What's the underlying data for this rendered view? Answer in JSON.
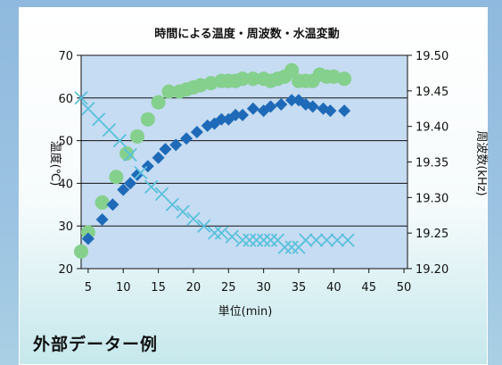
{
  "caption": "外部データー例",
  "chart_data": {
    "type": "line",
    "title": "時間による温度・周波数・水温変動",
    "xlabel": "単位(min)",
    "ylabel_left": "温度(℃)",
    "ylabel_right": "周波数(kHz)",
    "x_ticks": [
      5,
      10,
      15,
      20,
      25,
      30,
      35,
      40,
      45,
      50
    ],
    "xlim": [
      4,
      50.5
    ],
    "y_left_ticks": [
      20,
      30,
      40,
      50,
      60,
      70
    ],
    "y_left_lim": [
      20,
      70
    ],
    "y_right_ticks": [
      "19.20",
      "19.25",
      "19.30",
      "19.35",
      "19.40",
      "19.45",
      "19.50"
    ],
    "y_right_lim": [
      19.2,
      19.5
    ],
    "grid": "horizontal",
    "plot_bg": "#c5dcf2",
    "series": [
      {
        "axis": "left",
        "marker": "circle",
        "color": "#85d08d",
        "x": [
          4,
          5,
          7,
          9,
          10.5,
          12,
          13.5,
          15,
          16.5,
          18,
          19,
          20,
          21,
          22.5,
          24,
          25,
          26,
          27,
          28.5,
          30,
          31,
          32,
          33,
          34,
          35,
          36,
          37,
          38,
          39,
          40,
          41.5
        ],
        "y": [
          24,
          28.5,
          35.5,
          41.5,
          47,
          51,
          55,
          59,
          61.5,
          61.5,
          62,
          62.5,
          63,
          63.5,
          64,
          64,
          64,
          64.5,
          64.5,
          64.5,
          64,
          64.5,
          65,
          66.5,
          64,
          64,
          64,
          65.5,
          65,
          65,
          64.5
        ]
      },
      {
        "axis": "left",
        "marker": "diamond",
        "color": "#1f6ab8",
        "x": [
          5,
          7,
          8.5,
          10,
          11,
          12,
          13.5,
          15,
          16,
          17.5,
          19,
          20.5,
          22,
          23,
          24,
          25,
          26,
          27,
          28.5,
          30,
          31,
          32.5,
          34,
          35,
          36,
          37,
          38.5,
          39.5,
          41.5
        ],
        "y": [
          27,
          31.5,
          35,
          38.5,
          40,
          42,
          44,
          46,
          48,
          49,
          50.5,
          52,
          53.5,
          54,
          55,
          55,
          56,
          56,
          57.5,
          57,
          58,
          58.5,
          59.5,
          59.5,
          58.5,
          58,
          57.5,
          57,
          57
        ]
      },
      {
        "axis": "right",
        "marker": "x",
        "color": "#5bc0dc",
        "x": [
          4,
          5,
          6.5,
          8,
          9.5,
          11,
          12.5,
          14,
          15.5,
          17,
          18.5,
          20,
          21.5,
          23,
          24,
          25.5,
          27,
          28,
          29,
          30,
          31,
          32,
          33,
          34,
          35,
          36,
          37.5,
          39,
          40.5,
          42
        ],
        "y": [
          19.44,
          19.425,
          19.41,
          19.395,
          19.38,
          19.36,
          19.335,
          19.315,
          19.305,
          19.29,
          19.28,
          19.27,
          19.26,
          19.25,
          19.25,
          19.245,
          19.24,
          19.24,
          19.24,
          19.24,
          19.24,
          19.24,
          19.23,
          19.23,
          19.23,
          19.24,
          19.24,
          19.24,
          19.24,
          19.24
        ]
      }
    ]
  }
}
